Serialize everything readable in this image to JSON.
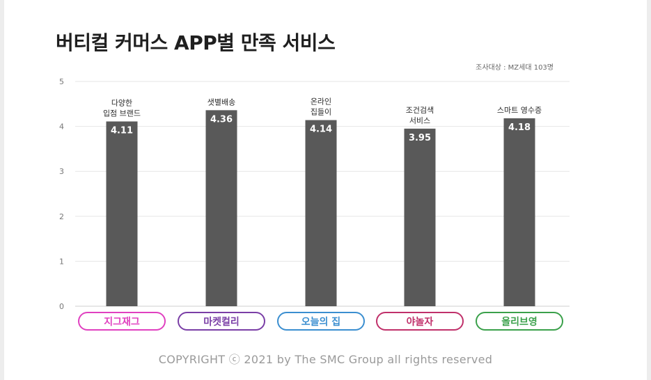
{
  "title": "버티컬 커머스 APP별 만족 서비스",
  "survey_note": "조사대상 : MZ세대 103명",
  "copyright": "COPYRIGHT ⓒ 2021 by The SMC Group all rights reserved",
  "chart_data": {
    "type": "bar",
    "title": "버티컬 커머스 APP별 만족 서비스",
    "xlabel": "",
    "ylabel": "",
    "ylim": [
      0,
      5
    ],
    "yticks": [
      0,
      1,
      2,
      3,
      4,
      5
    ],
    "grid": true,
    "categories": [
      "지그재그",
      "마켓컬리",
      "오늘의 집",
      "야놀자",
      "올리브영"
    ],
    "values": [
      4.11,
      4.36,
      4.14,
      3.95,
      4.18
    ],
    "value_labels": [
      "4.11",
      "4.36",
      "4.14",
      "3.95",
      "4.18"
    ],
    "service_labels": [
      [
        "다양한",
        "입점 브랜드"
      ],
      [
        "샛별배송"
      ],
      [
        "온라인",
        "집들이"
      ],
      [
        "조건검색",
        "서비스"
      ],
      [
        "스마트 영수증"
      ]
    ],
    "bar_color": "#595959",
    "category_colors": [
      "#e040c0",
      "#7a3ea6",
      "#3a8ed0",
      "#c0306a",
      "#3aa04a"
    ]
  }
}
